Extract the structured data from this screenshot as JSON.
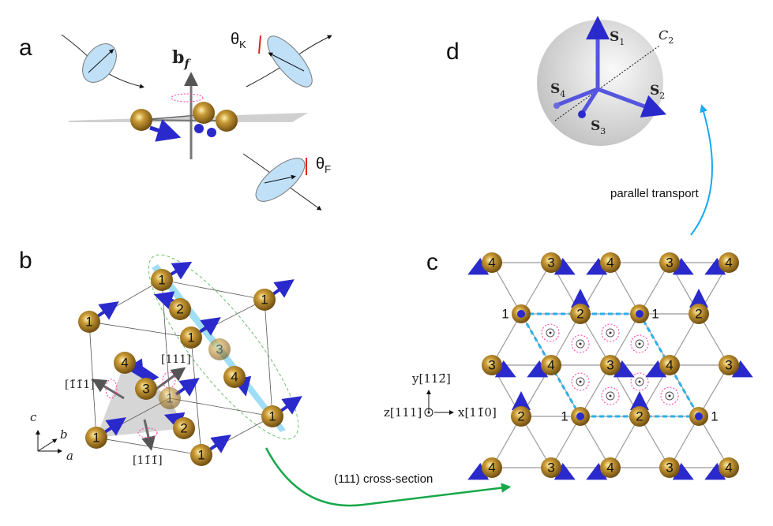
{
  "panels": {
    "a": {
      "label": "a",
      "field_label": "b",
      "field_sub": "f",
      "kerr_label": "θ",
      "kerr_sub": "K",
      "faraday_label": "θ",
      "faraday_sub": "F"
    },
    "b": {
      "label": "b",
      "directions": [
        "[1̄1̄1]",
        "[111]",
        "[11̄1̄]"
      ],
      "axes": {
        "a": "a",
        "b": "b",
        "c": "c"
      },
      "atoms": [
        "1",
        "1",
        "1",
        "1",
        "1",
        "1",
        "1",
        "1",
        "2",
        "2",
        "3",
        "3",
        "4",
        "4"
      ]
    },
    "c": {
      "label": "c",
      "rows": [
        [
          "4",
          "3",
          "4",
          "3",
          "4"
        ],
        [
          "1",
          "2",
          "1",
          "2"
        ],
        [
          "3",
          "4",
          "3",
          "4",
          "3"
        ],
        [
          "2",
          "1",
          "2",
          "1"
        ],
        [
          "4",
          "3",
          "4",
          "3",
          "4"
        ]
      ],
      "axis_y": "y[112̄]",
      "axis_z": "z[111]",
      "axis_x": "x[11̄0]"
    },
    "d": {
      "label": "d",
      "spins": [
        "S",
        "S",
        "S",
        "S"
      ],
      "spin_subs": [
        "1",
        "2",
        "3",
        "4"
      ],
      "axis": "C",
      "axis_sub": "2"
    }
  },
  "arrows": {
    "cross_section": "(111) cross-section",
    "parallel_transport": "parallel transport"
  },
  "colors": {
    "atom": "#b8862a",
    "spin": "#2a2acc",
    "plane": "#7fd3f0",
    "green_arrow": "#18a84a",
    "blue_arrow": "#1aa8f0",
    "chirality": "#ff3aa0"
  }
}
